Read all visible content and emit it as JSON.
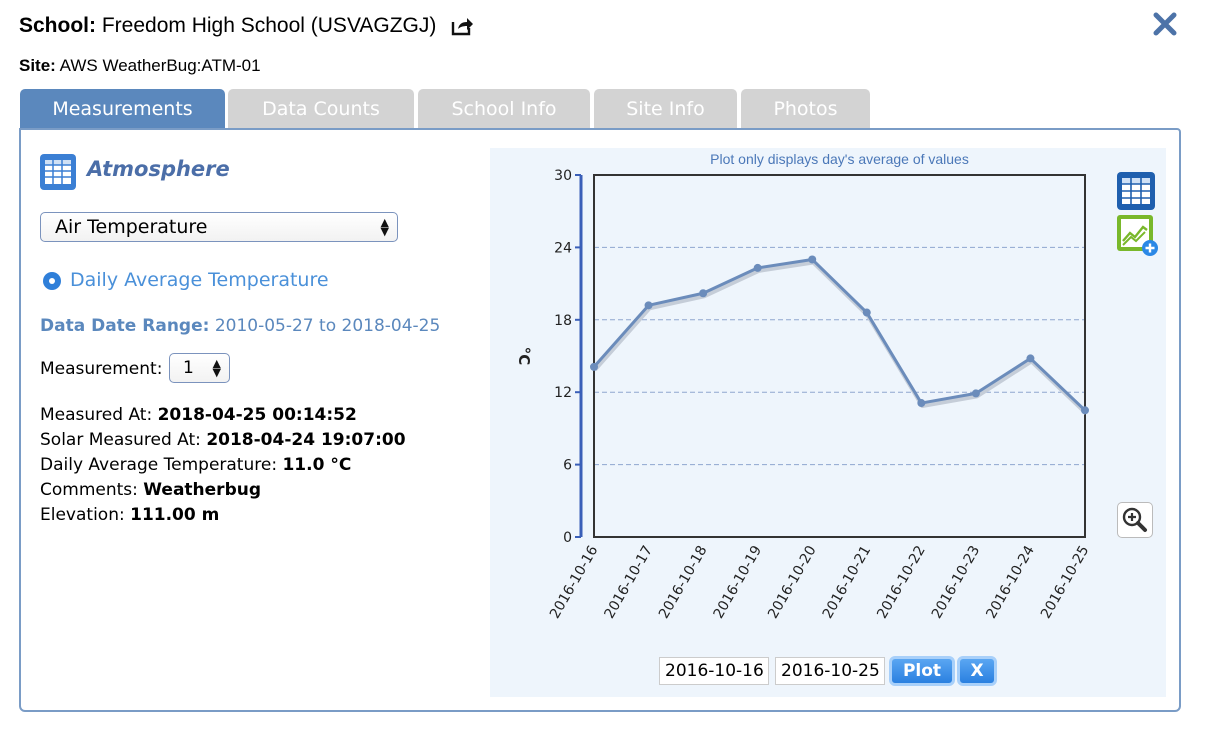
{
  "header": {
    "school_label": "School:",
    "school_name": "Freedom High School (USVAGZGJ)",
    "site_label": "Site:",
    "site_name": "AWS WeatherBug:ATM-01"
  },
  "tabs": [
    {
      "label": "Measurements",
      "active": true
    },
    {
      "label": "Data Counts",
      "active": false
    },
    {
      "label": "School Info",
      "active": false
    },
    {
      "label": "Site Info",
      "active": false
    },
    {
      "label": "Photos",
      "active": false
    }
  ],
  "left": {
    "section_title": "Atmosphere",
    "measurement_type": "Air Temperature",
    "radio_label": "Daily Average Temperature",
    "date_range_label": "Data Date Range:",
    "date_range_value": "2010-05-27 to 2018-04-25",
    "measurement_label": "Measurement:",
    "measurement_value": "1",
    "details": [
      {
        "label": "Measured At:",
        "value": "2018-04-25 00:14:52"
      },
      {
        "label": "Solar Measured At:",
        "value": "2018-04-24 19:07:00"
      },
      {
        "label": "Daily Average Temperature:",
        "value": "11.0 °C"
      },
      {
        "label": "Comments:",
        "value": "Weatherbug"
      },
      {
        "label": "Elevation:",
        "value": "111.00 m"
      }
    ]
  },
  "controls": {
    "start_date": "2016-10-16",
    "end_date": "2016-10-25",
    "plot_label": "Plot",
    "clear_label": "X"
  },
  "colors": {
    "accent": "#5b88bd",
    "line": "#6b8cbb",
    "axis": "#3a5fb8",
    "chart_bg": "#eef5fc"
  },
  "chart_data": {
    "type": "line",
    "title": "Plot only displays day's average of values",
    "xlabel": "",
    "ylabel": "°C",
    "categories": [
      "2016-10-16",
      "2016-10-17",
      "2016-10-18",
      "2016-10-19",
      "2016-10-20",
      "2016-10-21",
      "2016-10-22",
      "2016-10-23",
      "2016-10-24",
      "2016-10-25"
    ],
    "values": [
      14.1,
      19.2,
      20.2,
      22.3,
      23.0,
      18.6,
      11.1,
      11.9,
      14.8,
      10.5
    ],
    "ylim": [
      0,
      30
    ],
    "yticks": [
      0,
      6,
      12,
      18,
      24,
      30
    ],
    "grid": true,
    "legend": "none"
  }
}
